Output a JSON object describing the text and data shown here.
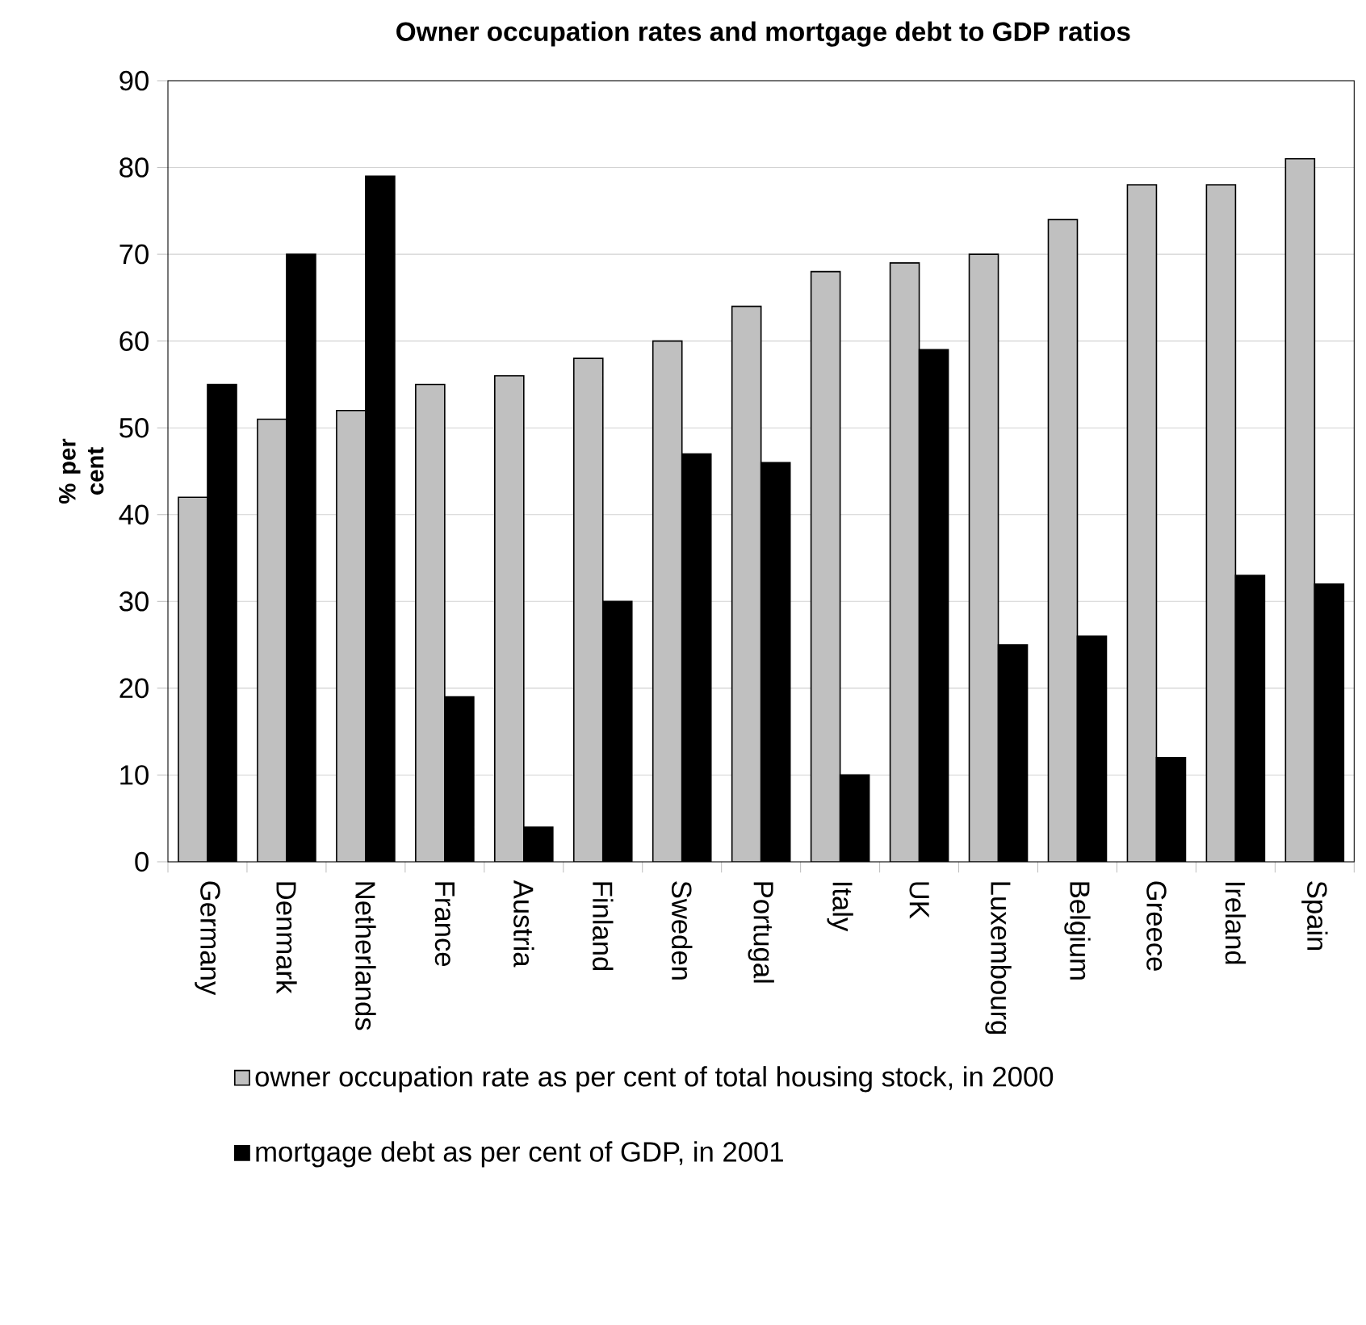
{
  "chart_data": {
    "type": "bar",
    "title": "Owner occupation rates and mortgage debt to GDP ratios",
    "ylabel": "% per cent",
    "categories": [
      "Germany",
      "Denmark",
      "Netherlands",
      "France",
      "Austria",
      "Finland",
      "Sweden",
      "Portugal",
      "Italy",
      "UK",
      "Luxembourg",
      "Belgium",
      "Greece",
      "Ireland",
      "Spain"
    ],
    "series": [
      {
        "name": "owner occupation rate as per cent of total housing stock, in 2000",
        "color": "#c0c0c0",
        "values": [
          42,
          51,
          52,
          55,
          56,
          58,
          60,
          64,
          68,
          69,
          70,
          74,
          78,
          78,
          81
        ]
      },
      {
        "name": "mortgage debt as per cent of GDP, in 2001",
        "color": "#000000",
        "values": [
          55,
          70,
          79,
          19,
          4,
          30,
          47,
          46,
          10,
          59,
          25,
          26,
          12,
          33,
          32
        ]
      }
    ],
    "ylim": [
      0,
      90
    ],
    "yticks": [
      0,
      10,
      20,
      30,
      40,
      50,
      60,
      70,
      80,
      90
    ],
    "grid": "y",
    "legend": "bottom"
  }
}
